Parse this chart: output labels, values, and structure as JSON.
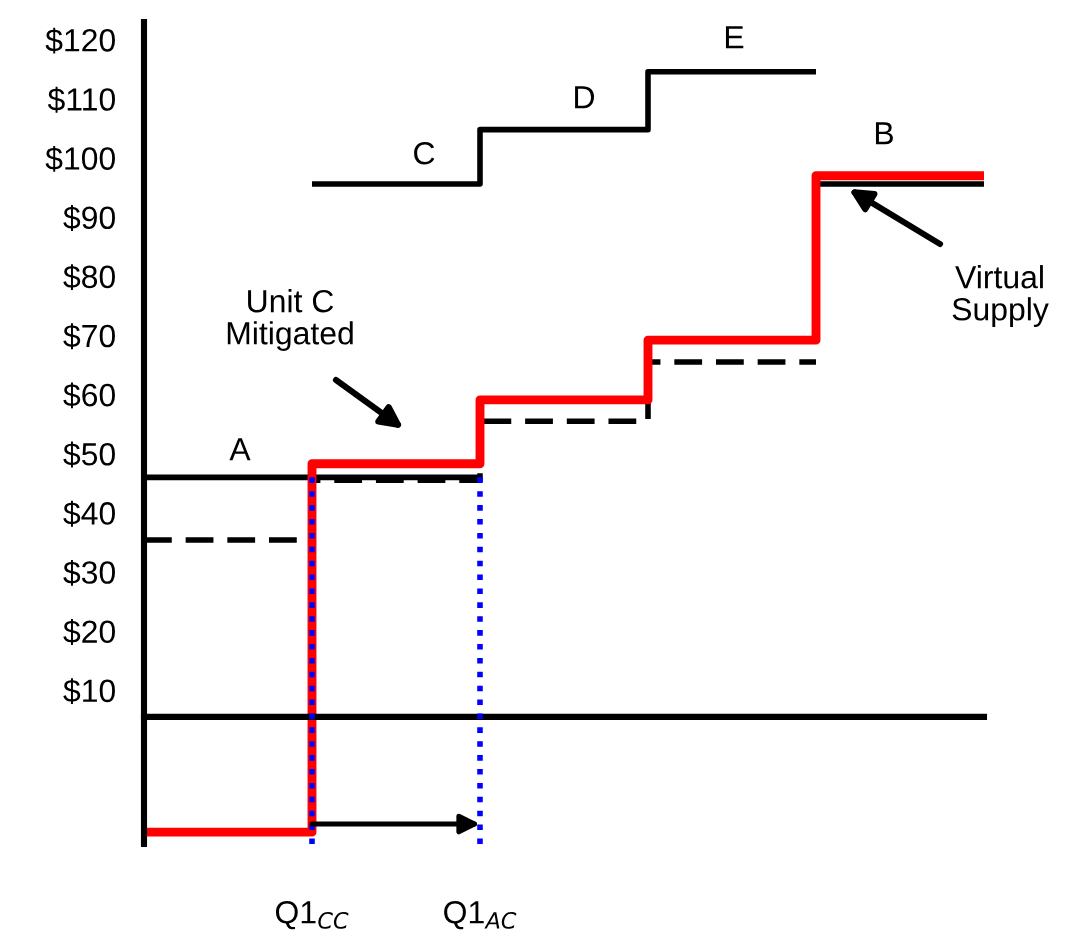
{
  "chart_data": {
    "type": "step",
    "ylim": [
      -16,
      123
    ],
    "categories": [
      null,
      "Q1$_{CC}$",
      "Q1$_{AC}$",
      null,
      null,
      null
    ],
    "yticks": [
      {
        "value": 10,
        "label": "$10"
      },
      {
        "value": 20,
        "label": "$20"
      },
      {
        "value": 30,
        "label": "$30"
      },
      {
        "value": 40,
        "label": "$40"
      },
      {
        "value": 50,
        "label": "$50"
      },
      {
        "value": 60,
        "label": "$60"
      },
      {
        "value": 70,
        "label": "$70"
      },
      {
        "value": 80,
        "label": "$80"
      },
      {
        "value": 90,
        "label": "$90"
      },
      {
        "value": 100,
        "label": "$100"
      },
      {
        "value": 110,
        "label": "$110"
      },
      {
        "value": 120,
        "label": "$120"
      }
    ],
    "grid": false,
    "legend": false,
    "marker": "none",
    "ref_lines": [
      {
        "axis": "y",
        "value": 5.5,
        "color": "#000000",
        "line_style": "solid"
      },
      {
        "axis": "x",
        "value": "Q1$_{CC}$",
        "color": "#0000ff",
        "line_style": "dotted"
      },
      {
        "axis": "x",
        "value": "Q1$_{AC}$",
        "color": "#0000ff",
        "line_style": "dotted"
      }
    ],
    "series": [
      {
        "color": "#000000",
        "line_style": "solid",
        "values": [
          46,
          46,
          46,
          null,
          null,
          null
        ]
      },
      {
        "color": "#000000",
        "line_style": "solid",
        "values": [
          null,
          95.6,
          104.8,
          114.6,
          114.6,
          null
        ]
      },
      {
        "color": "#000000",
        "line_style": "dashed",
        "values": [
          35.4,
          45.5,
          55.5,
          65.5,
          65.5,
          null
        ]
      },
      {
        "color": "#000000",
        "line_style": "solid",
        "values": [
          null,
          null,
          null,
          null,
          95.6,
          95.6
        ]
      },
      {
        "color": "#ff0000",
        "line_style": "solid",
        "values": [
          -14,
          48.3,
          59.1,
          69.2,
          97,
          97
        ]
      }
    ],
    "annotations": [
      "A",
      "C",
      "D",
      "E",
      "B",
      "Unit C\nMitigated",
      "Virtual\nSupply"
    ]
  }
}
